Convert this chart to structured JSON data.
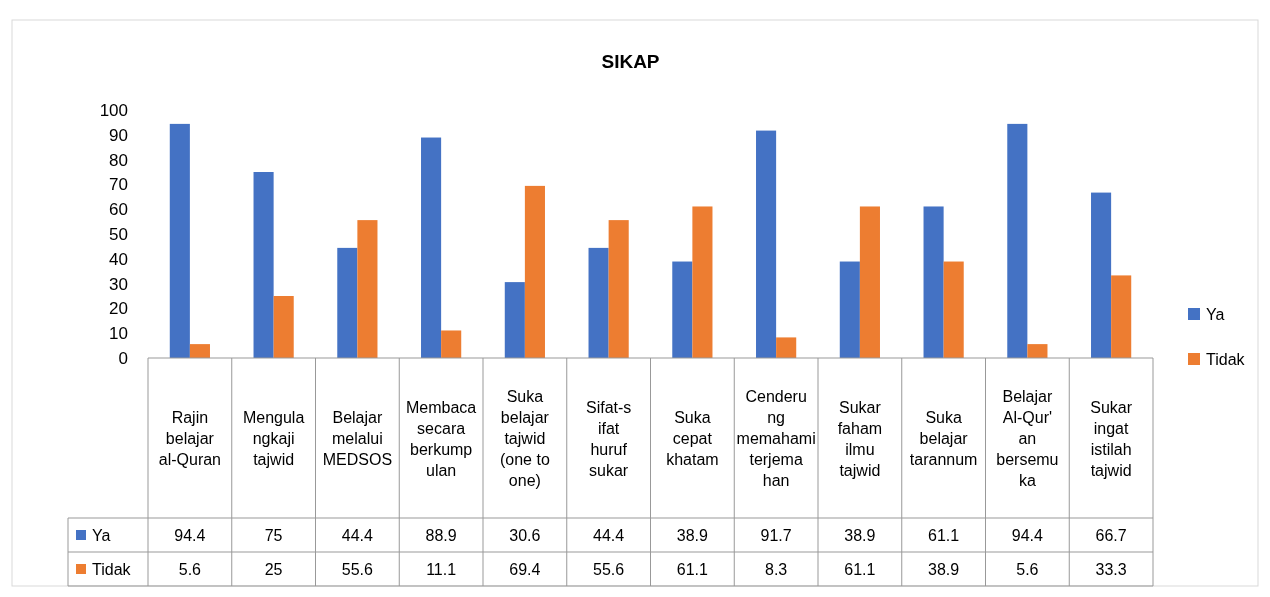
{
  "chart_data": {
    "type": "bar",
    "title": "SIKAP",
    "categories": [
      "Rajin belajar al-Quran",
      "Mengulangkaji tajwid",
      "Belajar melalui MEDSOS",
      "Membaca secara berkumpulan",
      "Suka belajar tajwid (one to one)",
      "Sifat-sifat huruf sukar",
      "Suka cepat khatam",
      "Cenderung memahami terjemahan",
      "Sukar faham ilmu tajwid",
      "Suka belajar tarannum",
      "Belajar Al-Qur'an bersemuka",
      "Sukar ingat istilah tajwid"
    ],
    "series": [
      {
        "name": "Ya",
        "color": "#4472c4",
        "values": [
          94.4,
          75,
          44.4,
          88.9,
          30.6,
          44.4,
          38.9,
          91.7,
          38.9,
          61.1,
          94.4,
          66.7
        ]
      },
      {
        "name": "Tidak",
        "color": "#ed7d31",
        "values": [
          5.6,
          25,
          55.6,
          11.1,
          69.4,
          55.6,
          61.1,
          8.3,
          61.1,
          38.9,
          5.6,
          33.3
        ]
      }
    ],
    "ylim": [
      0,
      100
    ],
    "yticks": [
      0,
      10,
      20,
      30,
      40,
      50,
      60,
      70,
      80,
      90,
      100
    ],
    "data_labels": true,
    "legend": "right",
    "grid": false
  }
}
